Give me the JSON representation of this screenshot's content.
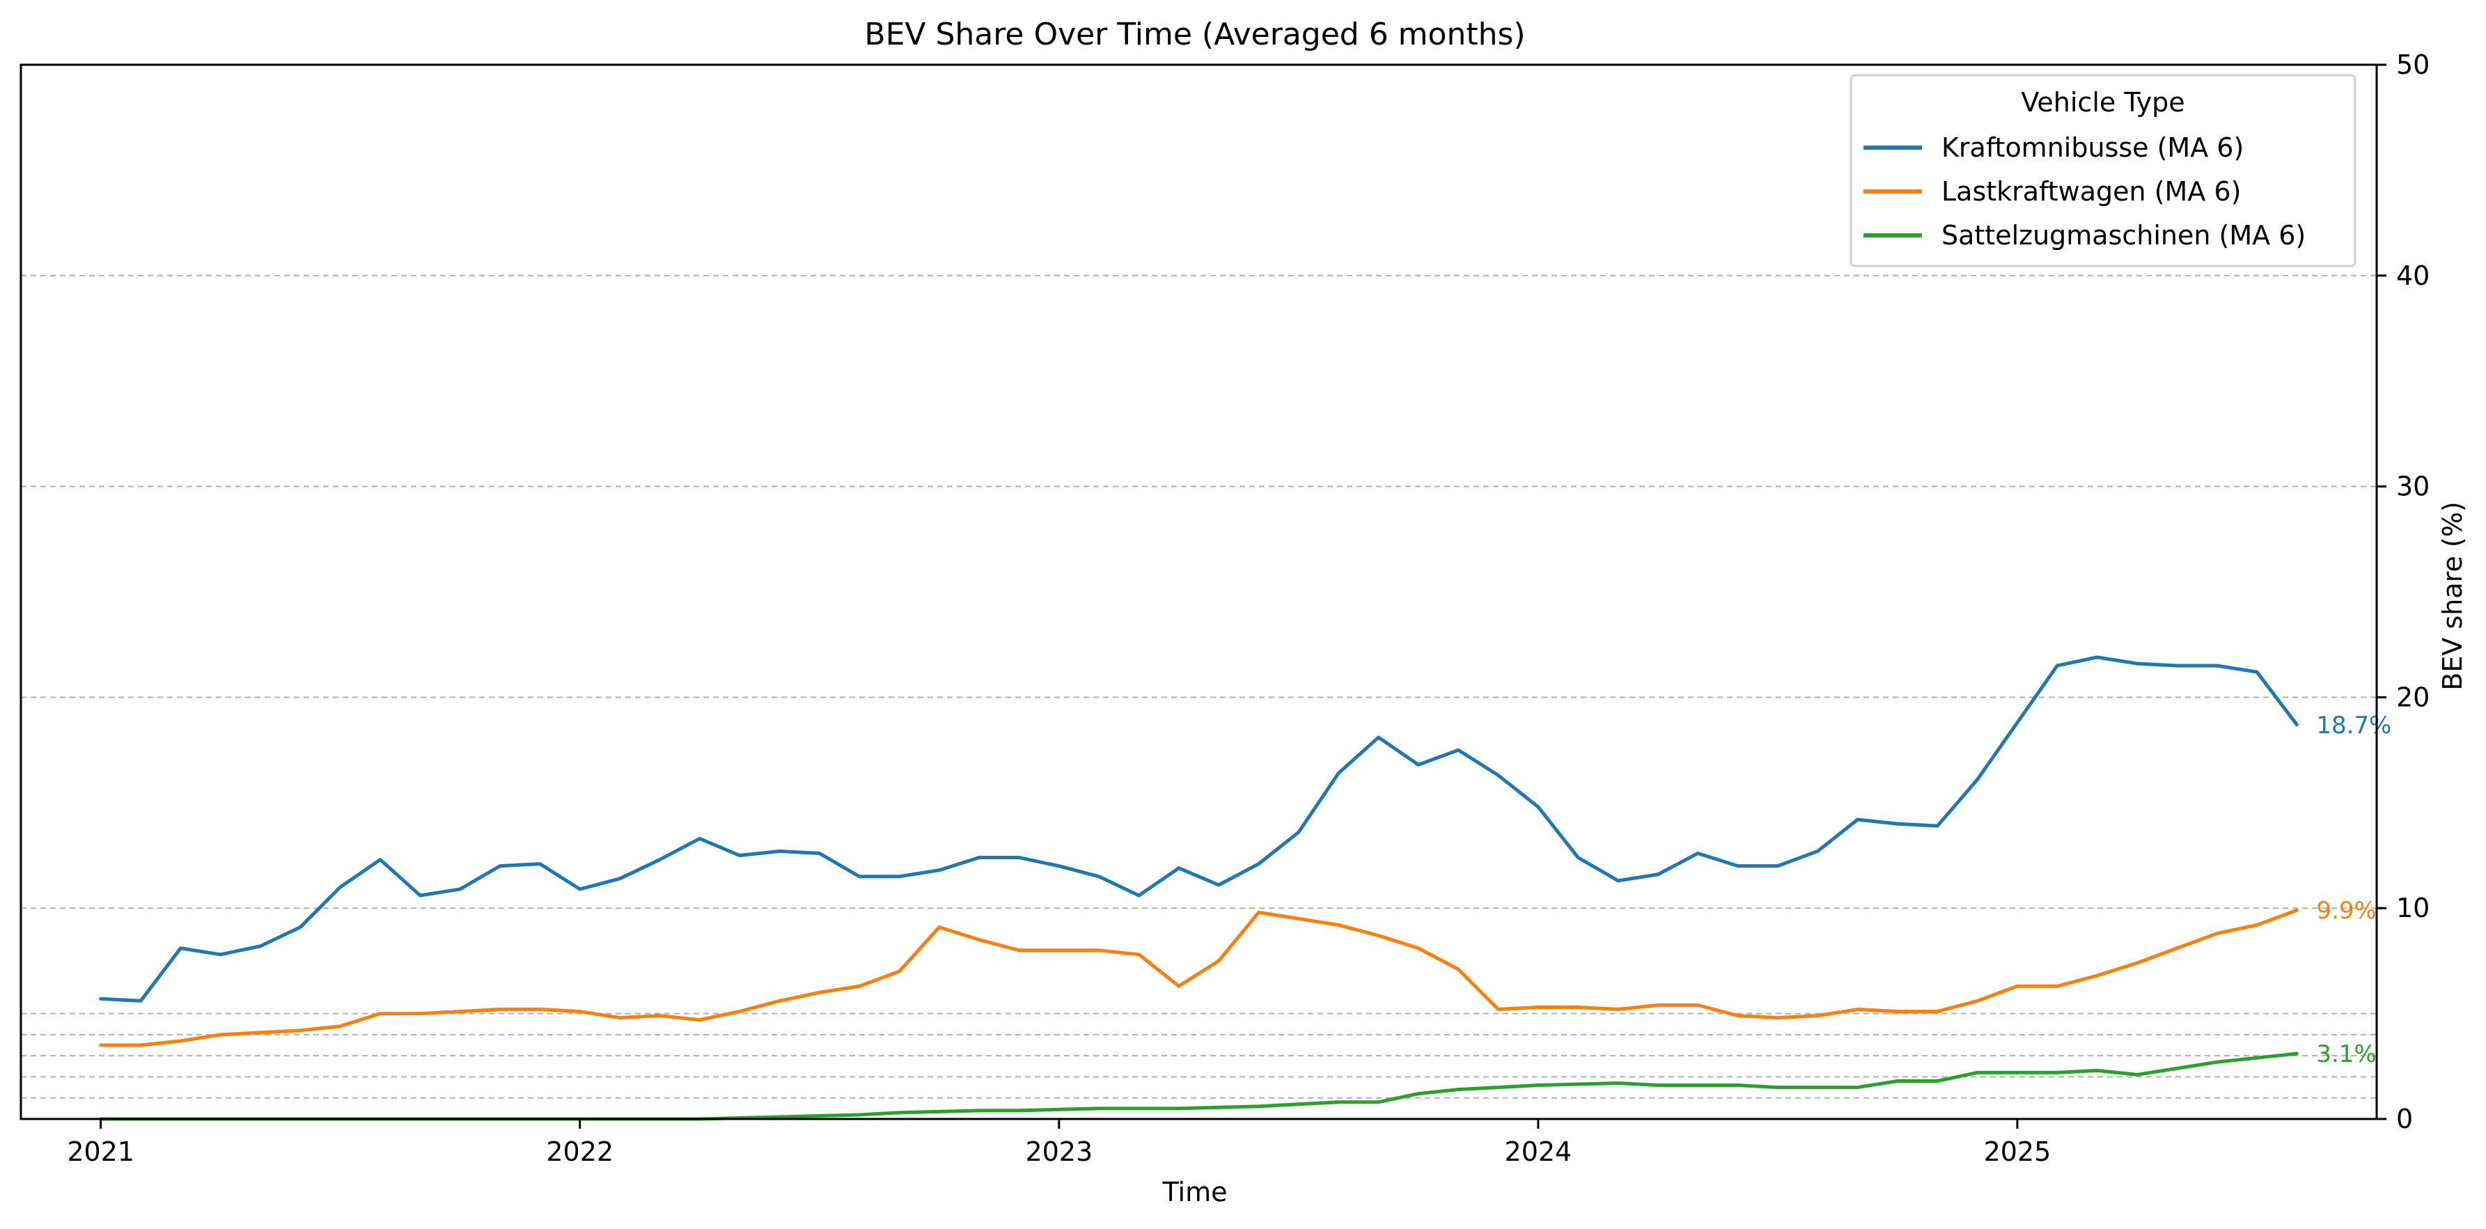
{
  "chart_data": {
    "type": "line",
    "title": "BEV Share Over Time (Averaged 6 months)",
    "xlabel": "Time",
    "ylabel": "BEV share (%)",
    "x_ticks": [
      "2021",
      "2022",
      "2023",
      "2024",
      "2025"
    ],
    "y_ticks": [
      "0",
      "10",
      "20",
      "30",
      "40",
      "50"
    ],
    "ylim": [
      0,
      50
    ],
    "xlim": [
      "2020-11",
      "2025-10"
    ],
    "y_axis_side": "right",
    "grid": {
      "horizontal_dashed": true,
      "extra_reference_lines": [
        1,
        2,
        3,
        4,
        5
      ]
    },
    "legend": {
      "title": "Vehicle Type",
      "placement": "top-right"
    },
    "x": [
      "2021-01",
      "2021-02",
      "2021-03",
      "2021-04",
      "2021-05",
      "2021-06",
      "2021-07",
      "2021-08",
      "2021-09",
      "2021-10",
      "2021-11",
      "2021-12",
      "2022-01",
      "2022-02",
      "2022-03",
      "2022-04",
      "2022-05",
      "2022-06",
      "2022-07",
      "2022-08",
      "2022-09",
      "2022-10",
      "2022-11",
      "2022-12",
      "2023-01",
      "2023-02",
      "2023-03",
      "2023-04",
      "2023-05",
      "2023-06",
      "2023-07",
      "2023-08",
      "2023-09",
      "2023-10",
      "2023-11",
      "2023-12",
      "2024-01",
      "2024-02",
      "2024-03",
      "2024-04",
      "2024-05",
      "2024-06",
      "2024-07",
      "2024-08",
      "2024-09",
      "2024-10",
      "2024-11",
      "2024-12",
      "2025-01",
      "2025-02",
      "2025-03",
      "2025-04",
      "2025-05",
      "2025-06",
      "2025-07",
      "2025-08"
    ],
    "series": [
      {
        "name": "Kraftomnibusse (MA 6)",
        "color": "#1f77b4",
        "end_label": "18.7%",
        "values": [
          5.7,
          5.6,
          8.1,
          7.8,
          8.2,
          9.1,
          11.0,
          12.3,
          10.6,
          10.9,
          12.0,
          12.1,
          10.9,
          11.4,
          12.3,
          13.3,
          12.5,
          12.7,
          12.6,
          11.5,
          11.5,
          11.8,
          12.4,
          12.4,
          12.0,
          11.5,
          10.6,
          11.9,
          11.1,
          12.1,
          13.6,
          16.4,
          18.1,
          16.8,
          17.5,
          16.3,
          14.8,
          12.4,
          11.3,
          11.6,
          12.6,
          12.0,
          12.0,
          12.7,
          14.2,
          14.0,
          13.9,
          16.1,
          18.8,
          21.5,
          21.9,
          21.6,
          21.5,
          21.5,
          21.2,
          18.7
        ]
      },
      {
        "name": "Lastkraftwagen (MA 6)",
        "color": "#ff7f0e",
        "end_label": "9.9%",
        "values": [
          3.5,
          3.5,
          3.7,
          4.0,
          4.1,
          4.2,
          4.4,
          5.0,
          5.0,
          5.1,
          5.2,
          5.2,
          5.1,
          4.8,
          4.9,
          4.7,
          5.1,
          5.6,
          6.0,
          6.3,
          7.0,
          9.1,
          8.5,
          8.0,
          8.0,
          8.0,
          7.8,
          6.3,
          7.5,
          9.8,
          9.5,
          9.2,
          8.7,
          8.1,
          7.1,
          5.2,
          5.3,
          5.3,
          5.2,
          5.4,
          5.4,
          4.9,
          4.8,
          4.9,
          5.2,
          5.1,
          5.1,
          5.6,
          6.3,
          6.3,
          6.8,
          7.4,
          8.1,
          8.8,
          9.2,
          9.9
        ]
      },
      {
        "name": "Sattelzugmaschinen (MA 6)",
        "color": "#2ca02c",
        "end_label": "3.1%",
        "values": [
          0.0,
          0.0,
          0.0,
          0.0,
          0.0,
          0.0,
          0.0,
          0.0,
          0.0,
          0.0,
          0.0,
          0.0,
          0.0,
          0.0,
          0.0,
          0.0,
          0.05,
          0.1,
          0.15,
          0.2,
          0.3,
          0.35,
          0.4,
          0.4,
          0.45,
          0.5,
          0.5,
          0.5,
          0.55,
          0.6,
          0.7,
          0.8,
          0.8,
          1.2,
          1.4,
          1.5,
          1.6,
          1.65,
          1.7,
          1.6,
          1.6,
          1.6,
          1.5,
          1.5,
          1.5,
          1.8,
          1.8,
          2.2,
          2.2,
          2.2,
          2.3,
          2.1,
          2.4,
          2.7,
          2.9,
          3.1
        ]
      }
    ]
  }
}
